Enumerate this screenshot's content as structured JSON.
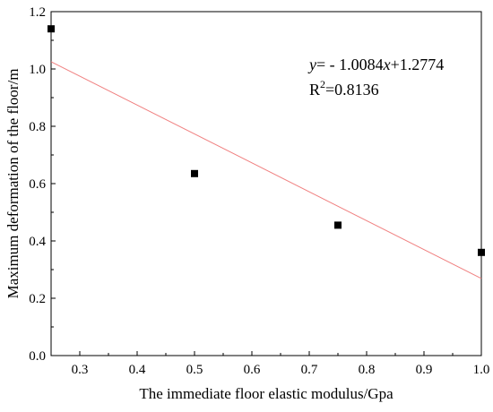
{
  "chart_data": {
    "type": "scatter",
    "xlabel": "The immediate floor elastic modulus/Gpa",
    "ylabel": "Maximum deformation of the floor/m",
    "xlim": [
      0.25,
      1.0
    ],
    "ylim": [
      0.0,
      1.2
    ],
    "x_ticks": [
      "0.3",
      "0.4",
      "0.5",
      "0.6",
      "0.7",
      "0.8",
      "0.9",
      "1.0"
    ],
    "y_ticks": [
      "0.0",
      "0.2",
      "0.4",
      "0.6",
      "0.8",
      "1.0",
      "1.2"
    ],
    "grid": false,
    "points": {
      "x": [
        0.25,
        0.5,
        0.75,
        1.0
      ],
      "y": [
        1.14,
        0.635,
        0.455,
        0.36
      ],
      "marker": "square",
      "color": "#000000"
    },
    "fit": {
      "slope": -1.0084,
      "intercept": 1.2774,
      "color": "#f08080",
      "equation_label": {
        "y_var": "y",
        "equals": "= - 1.0084",
        "x_var": "x",
        "rest": "+1.2774"
      },
      "r2_label": {
        "prefix": "R",
        "sup": "2",
        "value": "=0.8136"
      }
    }
  }
}
